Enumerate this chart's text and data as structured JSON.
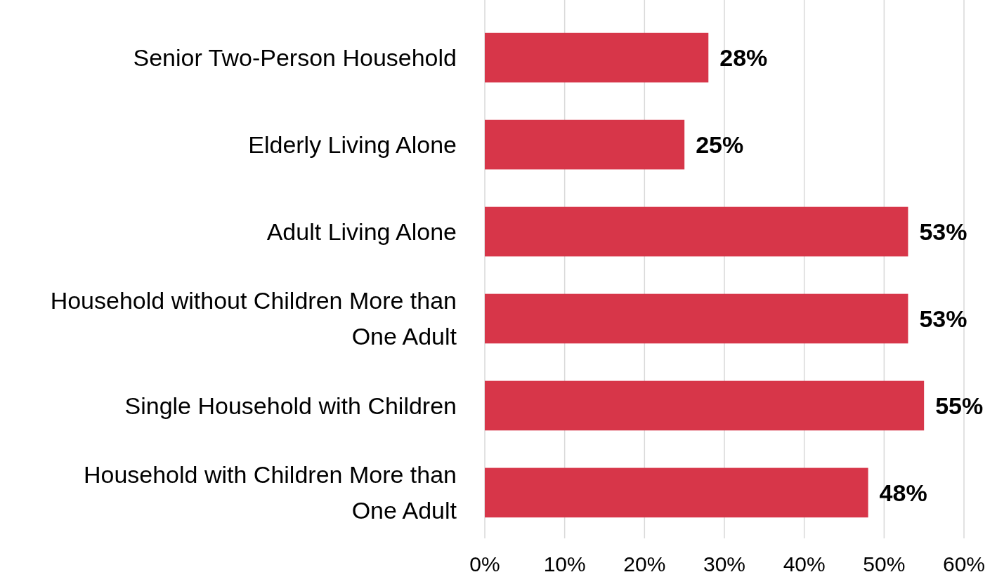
{
  "chart_data": {
    "type": "bar",
    "orientation": "horizontal",
    "categories": [
      "Senior Two-Person Household",
      "Elderly Living Alone",
      "Adult Living Alone",
      "Household without Children More than One Adult",
      "Single Household with Children",
      "Household with Children More than One Adult"
    ],
    "values": [
      28,
      25,
      53,
      53,
      55,
      48
    ],
    "value_labels": [
      "28%",
      "25%",
      "53%",
      "53%",
      "55%",
      "48%"
    ],
    "color": "#d73649",
    "xlim": [
      0,
      60
    ],
    "xticks": [
      {
        "value": 0,
        "label": "0%"
      },
      {
        "value": 10,
        "label": "10%"
      },
      {
        "value": 20,
        "label": "20%"
      },
      {
        "value": 30,
        "label": "30%"
      },
      {
        "value": 40,
        "label": "40%"
      },
      {
        "value": 50,
        "label": "50%"
      },
      {
        "value": 60,
        "label": "60%"
      }
    ],
    "grid": "x"
  }
}
